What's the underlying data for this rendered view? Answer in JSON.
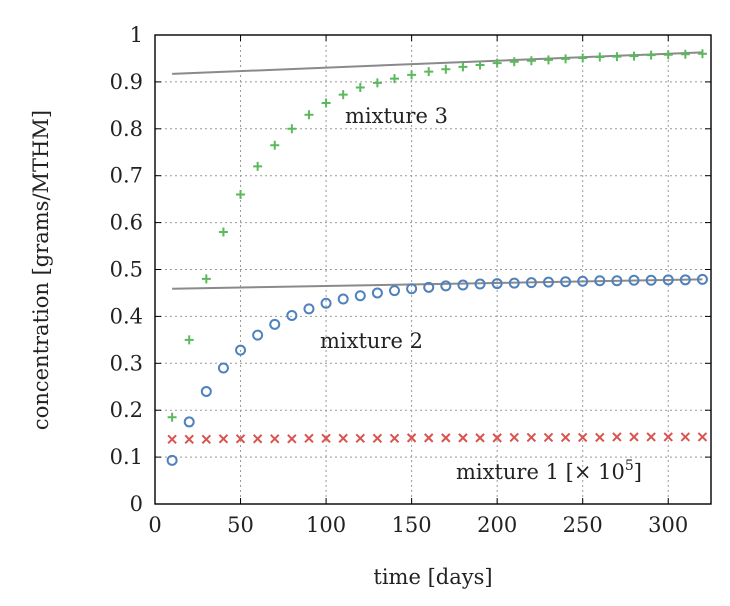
{
  "chart_data": {
    "type": "scatter",
    "xlabel": "time [days]",
    "ylabel": "concentration [grams/MTHM]",
    "xlim": [
      0,
      325
    ],
    "ylim": [
      0,
      1
    ],
    "xticks": [
      "0",
      "50",
      "100",
      "150",
      "200",
      "250",
      "300"
    ],
    "yticks": [
      "0",
      "0.1",
      "0.2",
      "0.3",
      "0.4",
      "0.5",
      "0.6",
      "0.7",
      "0.8",
      "0.9",
      "1"
    ],
    "grid": true,
    "colors": {
      "mixture1": "#d9534f",
      "mixture2": "#4f81bd",
      "mixture3": "#5cb85c",
      "reference": "#8a8a8a"
    },
    "annotations": {
      "mixture3": "mixture 3",
      "mixture2": "mixture 2",
      "mixture1": "mixture 1 [",
      "mixture1_times": "× 10",
      "mixture1_exp": "5",
      "mixture1_close": "]"
    },
    "x": [
      10,
      20,
      30,
      40,
      50,
      60,
      70,
      80,
      90,
      100,
      110,
      120,
      130,
      140,
      150,
      160,
      170,
      180,
      190,
      200,
      210,
      220,
      230,
      240,
      250,
      260,
      270,
      280,
      290,
      300,
      310,
      320
    ],
    "series": [
      {
        "key": "mixture3",
        "marker": "plus",
        "values": [
          0.185,
          0.35,
          0.48,
          0.58,
          0.66,
          0.72,
          0.765,
          0.8,
          0.83,
          0.855,
          0.873,
          0.888,
          0.898,
          0.907,
          0.915,
          0.922,
          0.927,
          0.932,
          0.936,
          0.94,
          0.943,
          0.945,
          0.947,
          0.949,
          0.951,
          0.953,
          0.954,
          0.955,
          0.957,
          0.958,
          0.959,
          0.96
        ]
      },
      {
        "key": "mixture2",
        "marker": "circle",
        "values": [
          0.093,
          0.175,
          0.24,
          0.29,
          0.328,
          0.36,
          0.383,
          0.402,
          0.416,
          0.428,
          0.437,
          0.444,
          0.45,
          0.455,
          0.459,
          0.462,
          0.465,
          0.467,
          0.469,
          0.47,
          0.471,
          0.472,
          0.473,
          0.474,
          0.475,
          0.476,
          0.476,
          0.477,
          0.477,
          0.478,
          0.478,
          0.479
        ]
      },
      {
        "key": "mixture1",
        "marker": "cross",
        "values": [
          0.138,
          0.138,
          0.138,
          0.139,
          0.139,
          0.139,
          0.139,
          0.139,
          0.14,
          0.14,
          0.14,
          0.14,
          0.14,
          0.14,
          0.141,
          0.141,
          0.141,
          0.141,
          0.141,
          0.141,
          0.142,
          0.142,
          0.142,
          0.142,
          0.142,
          0.142,
          0.143,
          0.143,
          0.143,
          0.143,
          0.143,
          0.143
        ]
      }
    ],
    "reference_lines": [
      {
        "key": "mixture3-reference",
        "x": [
          10,
          320
        ],
        "y": [
          0.917,
          0.963
        ]
      },
      {
        "key": "mixture2-reference",
        "x": [
          10,
          320
        ],
        "y": [
          0.459,
          0.479
        ]
      }
    ]
  }
}
